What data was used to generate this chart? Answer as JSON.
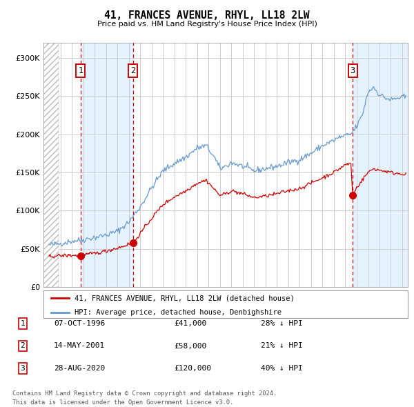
{
  "title": "41, FRANCES AVENUE, RHYL, LL18 2LW",
  "subtitle": "Price paid vs. HM Land Registry's House Price Index (HPI)",
  "legend_line1": "41, FRANCES AVENUE, RHYL, LL18 2LW (detached house)",
  "legend_line2": "HPI: Average price, detached house, Denbighshire",
  "footnote1": "Contains HM Land Registry data © Crown copyright and database right 2024.",
  "footnote2": "This data is licensed under the Open Government Licence v3.0.",
  "transactions": [
    {
      "num": 1,
      "date": "07-OCT-1996",
      "price": 41000,
      "pct": "28%",
      "dir": "↓"
    },
    {
      "num": 2,
      "date": "14-MAY-2001",
      "price": 58000,
      "pct": "21%",
      "dir": "↓"
    },
    {
      "num": 3,
      "date": "28-AUG-2020",
      "price": 120000,
      "pct": "40%",
      "dir": "↓"
    }
  ],
  "sale_dates_decimal": [
    1996.77,
    2001.37,
    2020.66
  ],
  "sale_prices": [
    41000,
    58000,
    120000
  ],
  "red_color": "#cc0000",
  "blue_color": "#6699cc",
  "grid_color": "#cccccc",
  "bg_color": "#ddeeff",
  "ylim": [
    0,
    320000
  ],
  "yticks": [
    0,
    50000,
    100000,
    150000,
    200000,
    250000,
    300000
  ],
  "xlim_start": 1993.5,
  "xlim_end": 2025.5,
  "hpi_anchors": [
    [
      1994.0,
      55000
    ],
    [
      1995.0,
      57000
    ],
    [
      1996.0,
      60000
    ],
    [
      1997.0,
      62000
    ],
    [
      1998.0,
      65000
    ],
    [
      1999.0,
      68000
    ],
    [
      2000.0,
      73000
    ],
    [
      2001.0,
      85000
    ],
    [
      2002.0,
      105000
    ],
    [
      2003.0,
      130000
    ],
    [
      2004.0,
      152000
    ],
    [
      2005.0,
      162000
    ],
    [
      2006.0,
      170000
    ],
    [
      2007.0,
      182000
    ],
    [
      2007.8,
      185000
    ],
    [
      2008.5,
      170000
    ],
    [
      2009.0,
      155000
    ],
    [
      2009.5,
      158000
    ],
    [
      2010.0,
      163000
    ],
    [
      2011.0,
      158000
    ],
    [
      2012.0,
      152000
    ],
    [
      2013.0,
      155000
    ],
    [
      2014.0,
      158000
    ],
    [
      2015.0,
      163000
    ],
    [
      2016.0,
      167000
    ],
    [
      2017.0,
      175000
    ],
    [
      2018.0,
      185000
    ],
    [
      2019.0,
      192000
    ],
    [
      2019.5,
      196000
    ],
    [
      2020.0,
      198000
    ],
    [
      2020.5,
      200000
    ],
    [
      2021.0,
      210000
    ],
    [
      2021.5,
      225000
    ],
    [
      2022.0,
      255000
    ],
    [
      2022.5,
      262000
    ],
    [
      2023.0,
      252000
    ],
    [
      2023.5,
      248000
    ],
    [
      2024.0,
      245000
    ],
    [
      2024.5,
      247000
    ],
    [
      2025.3,
      249000
    ]
  ],
  "red_anchors": [
    [
      1994.0,
      40000
    ],
    [
      1995.0,
      41000
    ],
    [
      1996.0,
      41500
    ],
    [
      1996.77,
      41000
    ],
    [
      1997.0,
      42000
    ],
    [
      1998.0,
      44000
    ],
    [
      1999.0,
      47000
    ],
    [
      2000.0,
      51000
    ],
    [
      2001.0,
      56000
    ],
    [
      2001.37,
      58000
    ],
    [
      2002.0,
      70000
    ],
    [
      2003.0,
      90000
    ],
    [
      2004.0,
      108000
    ],
    [
      2005.0,
      118000
    ],
    [
      2006.0,
      126000
    ],
    [
      2007.0,
      136000
    ],
    [
      2007.8,
      140000
    ],
    [
      2008.5,
      128000
    ],
    [
      2009.0,
      120000
    ],
    [
      2009.5,
      122000
    ],
    [
      2010.0,
      126000
    ],
    [
      2011.0,
      122000
    ],
    [
      2012.0,
      117000
    ],
    [
      2013.0,
      119000
    ],
    [
      2014.0,
      122000
    ],
    [
      2015.0,
      126000
    ],
    [
      2016.0,
      129000
    ],
    [
      2017.0,
      136000
    ],
    [
      2018.0,
      143000
    ],
    [
      2019.0,
      150000
    ],
    [
      2019.5,
      155000
    ],
    [
      2020.0,
      160000
    ],
    [
      2020.5,
      162000
    ],
    [
      2020.66,
      120000
    ],
    [
      2021.0,
      130000
    ],
    [
      2021.5,
      140000
    ],
    [
      2022.0,
      150000
    ],
    [
      2022.5,
      155000
    ],
    [
      2023.0,
      153000
    ],
    [
      2023.5,
      152000
    ],
    [
      2024.0,
      150000
    ],
    [
      2024.5,
      149000
    ],
    [
      2025.3,
      148000
    ]
  ]
}
